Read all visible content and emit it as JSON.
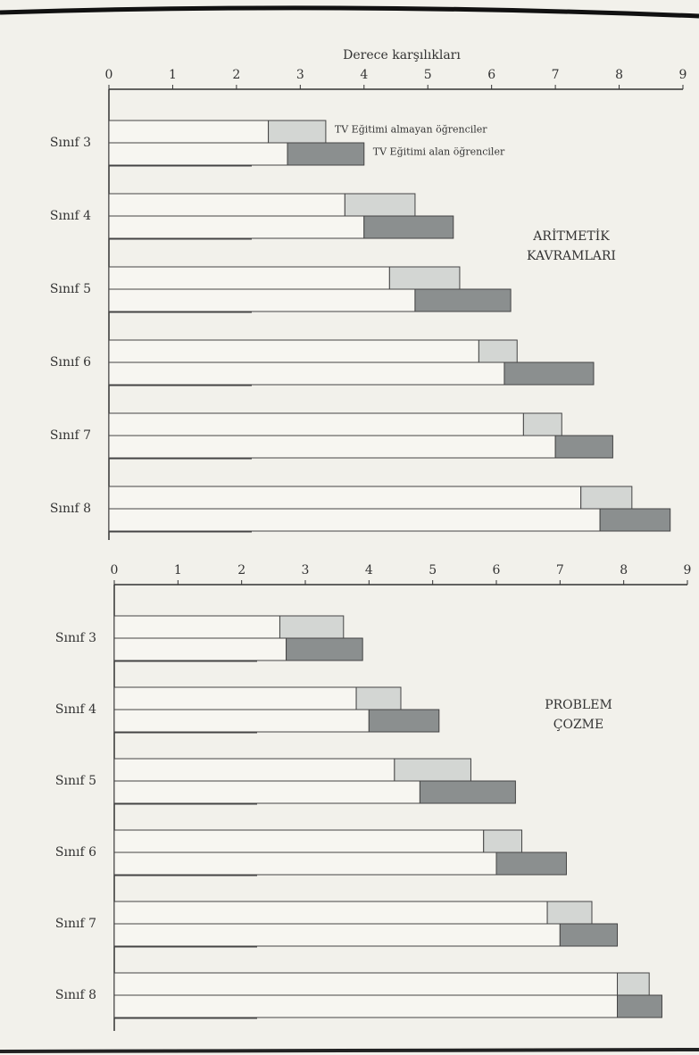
{
  "chart_data": [
    {
      "type": "range-bar",
      "x_label": "Derece karşılıkları",
      "categories": [
        "Sınıf 3",
        "Sınıf 4",
        "Sınıf 5",
        "Sınıf 6",
        "Sınıf 7",
        "Sınıf 8"
      ],
      "annotation": [
        "ARİTMETİK",
        "KAVRAMLARI"
      ],
      "xlim": [
        0,
        9
      ],
      "xticks": [
        0,
        1,
        2,
        3,
        4,
        5,
        6,
        7,
        8,
        9
      ],
      "series": [
        {
          "name": "TV Eğitimi almayan öğrenciler",
          "color": "#d3d6d3",
          "shade_start": [
            2.5,
            3.7,
            4.4,
            5.8,
            6.5,
            7.4
          ],
          "values": [
            3.4,
            4.8,
            5.5,
            6.4,
            7.1,
            8.2
          ]
        },
        {
          "name": "TV Eğitimi alan öğrenciler",
          "color": "#8b8f8f",
          "shade_start": [
            2.8,
            4.0,
            4.8,
            6.2,
            7.0,
            7.7
          ],
          "values": [
            4.0,
            5.4,
            6.3,
            7.6,
            7.9,
            8.8
          ]
        }
      ]
    },
    {
      "type": "range-bar",
      "categories": [
        "Sınıf 3",
        "Sınıf 4",
        "Sınıf 5",
        "Sınıf 6",
        "Sınıf 7",
        "Sınıf 8"
      ],
      "annotation": [
        "PROBLEM",
        "ÇOZME"
      ],
      "xlim": [
        0,
        9
      ],
      "xticks": [
        0,
        1,
        2,
        3,
        4,
        5,
        6,
        7,
        8,
        9
      ],
      "series": [
        {
          "color": "#d3d6d3",
          "shade_start": [
            2.6,
            3.8,
            4.4,
            5.8,
            6.8,
            7.9
          ],
          "values": [
            3.6,
            4.5,
            5.6,
            6.4,
            7.5,
            8.4
          ]
        },
        {
          "color": "#8b8f8f",
          "shade_start": [
            2.7,
            4.0,
            4.8,
            6.0,
            7.0,
            7.9
          ],
          "values": [
            3.9,
            5.1,
            6.3,
            7.1,
            7.9,
            8.6
          ]
        }
      ]
    }
  ]
}
